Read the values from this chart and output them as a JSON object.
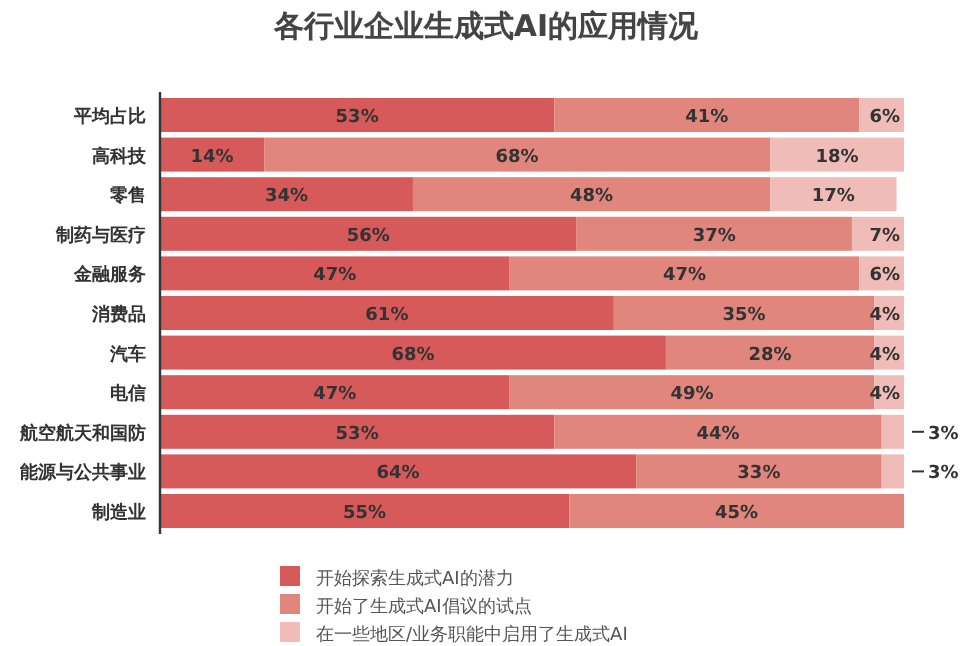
{
  "chart_data": {
    "type": "bar",
    "orientation": "horizontal",
    "stacked": true,
    "legend": "bottom",
    "title": "各行业企业生成式AI的应用情况",
    "categories": [
      "平均占比",
      "高科技",
      "零售",
      "制药与医疗",
      "金融服务",
      "消费品",
      "汽车",
      "电信",
      "航空航天和国防",
      "能源与公共事业",
      "制造业"
    ],
    "series": [
      {
        "name": "开始探索生成式AI的潜力",
        "color": "#d65a5a",
        "values": [
          53,
          14,
          34,
          56,
          47,
          61,
          68,
          47,
          53,
          64,
          55
        ],
        "value_labels": [
          "53%",
          "14%",
          "34%",
          "56%",
          "47%",
          "61%",
          "68%",
          "47%",
          "53%",
          "64%",
          "55%"
        ]
      },
      {
        "name": "开始了生成式AI倡议的试点",
        "color": "#e0867c",
        "values": [
          41,
          68,
          48,
          37,
          47,
          35,
          28,
          49,
          44,
          33,
          45
        ],
        "value_labels": [
          "41%",
          "68%",
          "48%",
          "37%",
          "47%",
          "35%",
          "28%",
          "49%",
          "44%",
          "33%",
          "45%"
        ]
      },
      {
        "name": "在一些地区/业务职能中启用了生成式AI",
        "color": "#f0bcb7",
        "values": [
          6,
          18,
          17,
          7,
          6,
          4,
          4,
          4,
          3,
          3,
          null
        ],
        "value_labels": [
          "6%",
          "18%",
          "17%",
          "7%",
          "6%",
          "4%",
          "4%",
          "4%",
          "3%",
          "3%",
          null
        ]
      }
    ]
  }
}
